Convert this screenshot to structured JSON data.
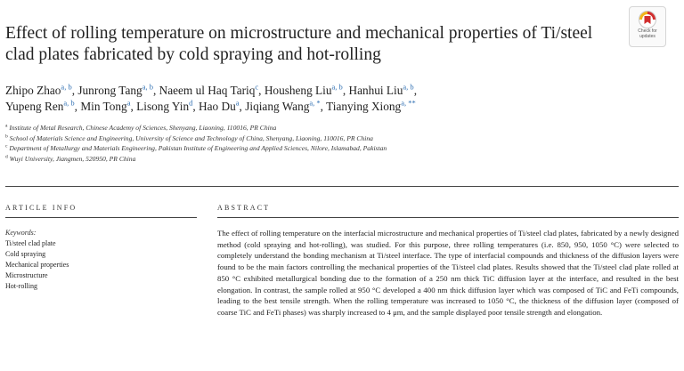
{
  "title": "Effect of rolling temperature on microstructure and mechanical properties of Ti/steel clad plates fabricated by cold spraying and hot-rolling",
  "badge": {
    "line1": "Check for",
    "line2": "updates",
    "icon": "check-for-updates-icon"
  },
  "authors": [
    {
      "name": "Zhipo Zhao",
      "aff": "a, b"
    },
    {
      "name": "Junrong Tang",
      "aff": "a, b"
    },
    {
      "name": "Naeem ul Haq Tariq",
      "aff": "c"
    },
    {
      "name": "Housheng Liu",
      "aff": "a, b"
    },
    {
      "name": "Hanhui Liu",
      "aff": "a, b"
    },
    {
      "name": "Yupeng Ren",
      "aff": "a, b"
    },
    {
      "name": "Min Tong",
      "aff": "a"
    },
    {
      "name": "Lisong Yin",
      "aff": "d"
    },
    {
      "name": "Hao Du",
      "aff": "a"
    },
    {
      "name": "Jiqiang Wang",
      "aff": "a, *"
    },
    {
      "name": "Tianying Xiong",
      "aff": "a, **"
    }
  ],
  "affiliations": [
    {
      "key": "a",
      "text": "Institute of Metal Research, Chinese Academy of Sciences, Shenyang, Liaoning, 110016, PR China"
    },
    {
      "key": "b",
      "text": "School of Materials Science and Engineering, University of Science and Technology of China, Shenyang, Liaoning, 110016, PR China"
    },
    {
      "key": "c",
      "text": "Department of Metallurgy and Materials Engineering, Pakistan Institute of Engineering and Applied Sciences, Nilore, Islamabad, Pakistan"
    },
    {
      "key": "d",
      "text": "Wuyi University, Jiangmen, 520950, PR China"
    }
  ],
  "article_info": {
    "heading": "ARTICLE INFO",
    "keywords_label": "Keywords:",
    "keywords": [
      "Ti/steel clad plate",
      "Cold spraying",
      "Mechanical properties",
      "Microstructure",
      "Hot-rolling"
    ]
  },
  "abstract": {
    "heading": "ABSTRACT",
    "text": "The effect of rolling temperature on the interfacial microstructure and mechanical properties of Ti/steel clad plates, fabricated by a newly designed method (cold spraying and hot-rolling), was studied. For this purpose, three rolling temperatures (i.e. 850, 950, 1050 °C) were selected to completely understand the bonding mechanism at Ti/steel interface. The type of interfacial compounds and thickness of the diffusion layers were found to be the main factors controlling the mechanical properties of the Ti/steel clad plates. Results showed that the Ti/steel clad plate rolled at 850 °C exhibited metallurgical bonding due to the formation of a 250 nm thick TiC diffusion layer at the interface, and resulted in the best elongation. In contrast, the sample rolled at 950 °C developed a 400 nm thick diffusion layer which was composed of TiC and FeTi compounds, leading to the best tensile strength. When the rolling temperature was increased to 1050 °C, the thickness of the diffusion layer (composed of coarse TiC and FeTi phases) was sharply increased to 4 μm, and the sample displayed poor tensile strength and elongation."
  }
}
